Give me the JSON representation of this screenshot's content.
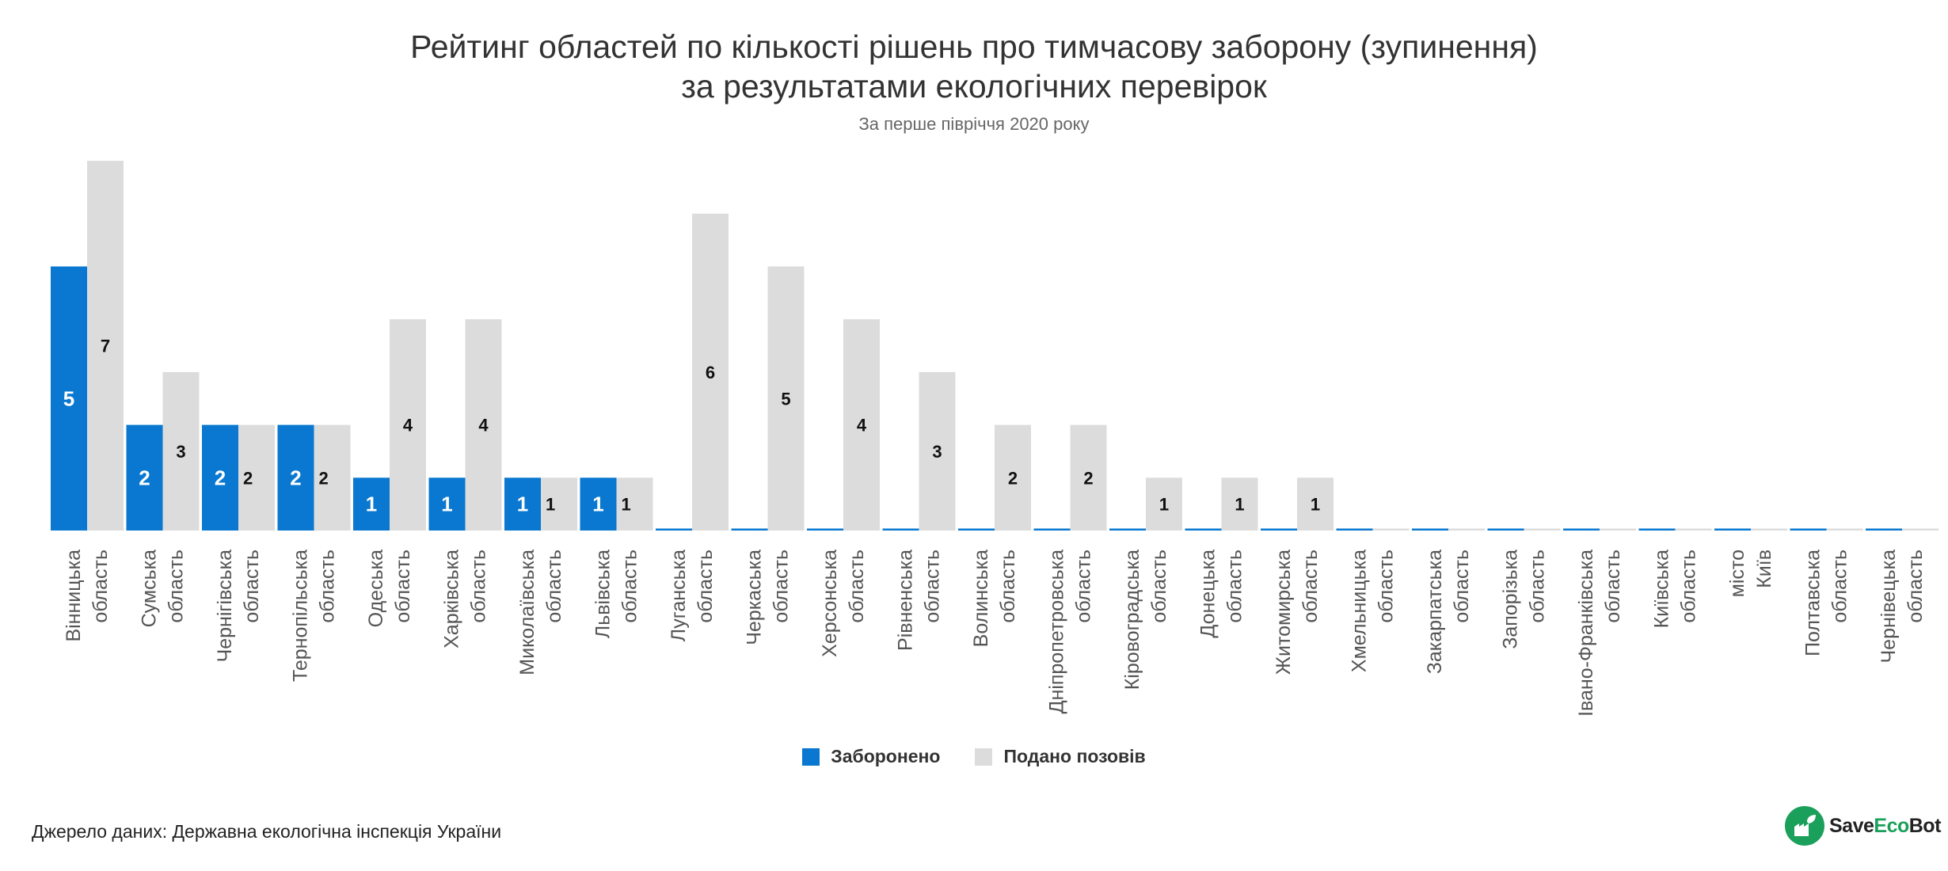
{
  "chart_data": {
    "type": "bar",
    "title_lines": [
      "Рейтинг областей по кількості рішень про тимчасову заборону (зупинення)",
      "за результатами екологічних перевірок"
    ],
    "subtitle": "За перше півріччя 2020 року",
    "categories": [
      [
        "Вінницька",
        "область"
      ],
      [
        "Сумська",
        "область"
      ],
      [
        "Чернігівська",
        "область"
      ],
      [
        "Тернопільська",
        "область"
      ],
      [
        "Одеська",
        "область"
      ],
      [
        "Харківська",
        "область"
      ],
      [
        "Миколаївська",
        "область"
      ],
      [
        "Львівська",
        "область"
      ],
      [
        "Луганська",
        "область"
      ],
      [
        "Черкаська",
        "область"
      ],
      [
        "Херсонська",
        "область"
      ],
      [
        "Рівненська",
        "область"
      ],
      [
        "Волинська",
        "область"
      ],
      [
        "Дніпропетровська",
        "область"
      ],
      [
        "Кіровоградська",
        "область"
      ],
      [
        "Донецька",
        "область"
      ],
      [
        "Житомирська",
        "область"
      ],
      [
        "Хмельницька",
        "область"
      ],
      [
        "Закарпатська",
        "область"
      ],
      [
        "Запорізька",
        "область"
      ],
      [
        "Івано-Франківська",
        "область"
      ],
      [
        "Київська",
        "область"
      ],
      [
        "місто",
        "Київ"
      ],
      [
        "Полтавська",
        "область"
      ],
      [
        "Чернівецька",
        "область"
      ]
    ],
    "series": [
      {
        "name": "Заборонено",
        "color": "#0a78d0",
        "values": [
          5,
          2,
          2,
          2,
          1,
          1,
          1,
          1,
          0,
          0,
          0,
          0,
          0,
          0,
          0,
          0,
          0,
          0,
          0,
          0,
          0,
          0,
          0,
          0,
          0
        ]
      },
      {
        "name": "Подано позовів",
        "color": "#dcdcdc",
        "values": [
          7,
          3,
          2,
          2,
          4,
          4,
          1,
          1,
          6,
          5,
          4,
          3,
          2,
          2,
          1,
          1,
          1,
          0,
          0,
          0,
          0,
          0,
          0,
          0,
          0
        ]
      }
    ],
    "ylim": [
      0,
      7
    ],
    "grid": false,
    "legend_position": "bottom"
  },
  "source_text": "Джерело даних: Державна екологічна інспекція України",
  "logo": {
    "text_main": "Save",
    "text_accent": "Eco",
    "text_tail": "Bot"
  }
}
